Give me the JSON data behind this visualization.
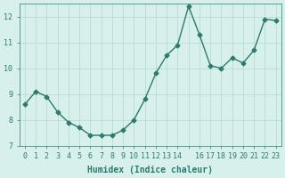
{
  "x": [
    0,
    1,
    2,
    3,
    4,
    5,
    6,
    7,
    8,
    9,
    10,
    11,
    12,
    13,
    14,
    15,
    16,
    17,
    18,
    19,
    20,
    21,
    22,
    23
  ],
  "y": [
    8.6,
    9.1,
    8.9,
    8.3,
    7.9,
    7.7,
    7.4,
    7.4,
    7.4,
    7.6,
    8.0,
    8.8,
    9.8,
    10.5,
    10.9,
    12.4,
    11.3,
    10.1,
    10.0,
    10.4,
    10.2,
    10.7,
    11.9,
    11.85
  ],
  "xlabel": "Humidex (Indice chaleur)",
  "line_color": "#2d7a6e",
  "marker_color": "#2d7a6e",
  "bg_color": "#d8f0ec",
  "grid_color": "#b0d8d0",
  "ylim": [
    7,
    12.5
  ],
  "xlim": [
    -0.5,
    23.5
  ],
  "yticks": [
    7,
    8,
    9,
    10,
    11,
    12
  ],
  "xtick_labels": [
    "0",
    "1",
    "2",
    "3",
    "4",
    "5",
    "6",
    "7",
    "8",
    "9",
    "10",
    "11",
    "12",
    "13",
    "14",
    "",
    "16",
    "17",
    "18",
    "19",
    "20",
    "21",
    "22",
    "23"
  ],
  "tick_color": "#2d7a6e",
  "label_fontsize": 7,
  "tick_fontsize": 6
}
